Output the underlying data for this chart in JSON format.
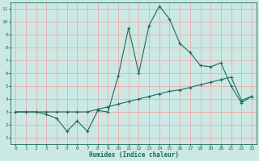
{
  "xlabel": "Humidex (Indice chaleur)",
  "ylabel": "",
  "bg_color": "#cce8e4",
  "line_color": "#1a6b5a",
  "grid_color": "#f5a0a0",
  "x_values": [
    0,
    1,
    2,
    3,
    4,
    5,
    6,
    7,
    8,
    9,
    10,
    11,
    12,
    13,
    14,
    15,
    16,
    17,
    18,
    19,
    20,
    21,
    22,
    23
  ],
  "line1_y": [
    3.0,
    3.0,
    3.0,
    2.8,
    2.5,
    1.5,
    2.3,
    1.5,
    3.1,
    3.0,
    5.8,
    9.5,
    6.0,
    9.7,
    11.2,
    10.2,
    8.3,
    7.6,
    6.6,
    6.5,
    6.8,
    5.0,
    3.7,
    4.2
  ],
  "line2_y": [
    3.0,
    3.0,
    3.0,
    3.0,
    3.0,
    3.0,
    3.0,
    3.0,
    3.2,
    3.4,
    3.6,
    3.8,
    4.0,
    4.2,
    4.4,
    4.6,
    4.7,
    4.9,
    5.1,
    5.3,
    5.5,
    5.7,
    3.9,
    4.2
  ],
  "xlim_min": -0.5,
  "xlim_max": 23.5,
  "ylim_min": 0.5,
  "ylim_max": 11.5,
  "yticks": [
    1,
    2,
    3,
    4,
    5,
    6,
    7,
    8,
    9,
    10,
    11
  ],
  "xticks": [
    0,
    1,
    2,
    3,
    4,
    5,
    6,
    7,
    8,
    9,
    10,
    11,
    12,
    13,
    14,
    15,
    16,
    17,
    18,
    19,
    20,
    21,
    22,
    23
  ]
}
